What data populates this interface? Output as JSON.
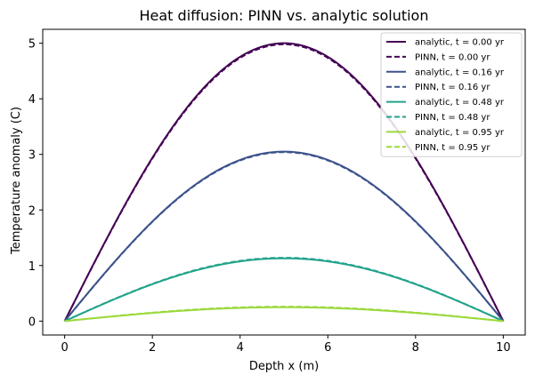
{
  "chart_data": {
    "type": "line",
    "title": "Heat diffusion: PINN vs. analytic solution",
    "xlabel": "Depth x (m)",
    "ylabel": "Temperature anomaly (C)",
    "xlim": [
      -0.5,
      10.5
    ],
    "ylim": [
      -0.25,
      5.25
    ],
    "xticks": [
      0,
      2,
      4,
      6,
      8,
      10
    ],
    "yticks": [
      0,
      1,
      2,
      3,
      4,
      5
    ],
    "grid": false,
    "legend_position": "upper right",
    "curve_shape": "sine half-period over depth, amplitude A: y = A * sin(pi * x / 10)",
    "series": [
      {
        "name": "analytic, t = 0.00 yr",
        "style": "solid",
        "color": "#440154",
        "amplitude": 5.0
      },
      {
        "name": "PINN, t = 0.00 yr",
        "style": "dashed",
        "color": "#440154",
        "amplitude": 4.98
      },
      {
        "name": "analytic, t = 0.16 yr",
        "style": "solid",
        "color": "#3b528b",
        "amplitude": 3.05
      },
      {
        "name": "PINN, t = 0.16 yr",
        "style": "dashed",
        "color": "#3b528b",
        "amplitude": 3.04
      },
      {
        "name": "analytic, t = 0.48 yr",
        "style": "solid",
        "color": "#21a38a",
        "amplitude": 1.13
      },
      {
        "name": "PINN, t = 0.48 yr",
        "style": "dashed",
        "color": "#21a38a",
        "amplitude": 1.14
      },
      {
        "name": "analytic, t = 0.95 yr",
        "style": "solid",
        "color": "#9bd93c",
        "amplitude": 0.25
      },
      {
        "name": "PINN, t = 0.95 yr",
        "style": "dashed",
        "color": "#9bd93c",
        "amplitude": 0.26
      }
    ]
  }
}
